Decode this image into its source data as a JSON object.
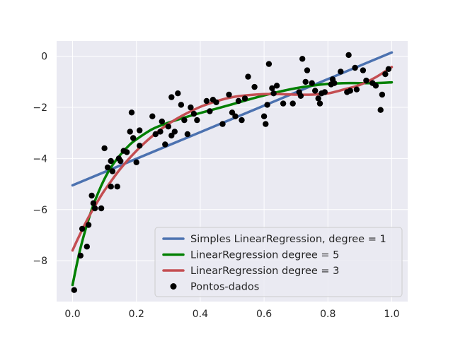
{
  "chart_data": {
    "type": "scatter",
    "title": "",
    "xlabel": "",
    "ylabel": "",
    "xlim": [
      -0.05,
      1.05
    ],
    "ylim": [
      -9.6,
      0.6
    ],
    "grid": true,
    "legend_position": "lower-right",
    "x_ticks": [
      0.0,
      0.2,
      0.4,
      0.6,
      0.8,
      1.0
    ],
    "x_tick_labels": [
      "0.0",
      "0.2",
      "0.4",
      "0.6",
      "0.8",
      "1.0"
    ],
    "y_ticks": [
      -8,
      -6,
      -4,
      -2,
      0
    ],
    "y_tick_labels": [
      "−8",
      "−6",
      "−4",
      "−2",
      "0"
    ],
    "colors": {
      "background": "#eaeaf2",
      "grid": "#ffffff",
      "degree1": "#4c72b0",
      "degree5": "#008000",
      "degree3": "#c44e52",
      "points": "#000000"
    },
    "series": [
      {
        "name": "Simples LinearRegression, degree = 1",
        "kind": "line",
        "color": "#4c72b0",
        "x": [
          0.0,
          1.0
        ],
        "y": [
          -5.05,
          0.15
        ]
      },
      {
        "name": "LinearRegression degree = 5",
        "kind": "line",
        "color": "#008000",
        "x": [
          0.0,
          0.02,
          0.04,
          0.06,
          0.08,
          0.1,
          0.12,
          0.15,
          0.18,
          0.2,
          0.25,
          0.3,
          0.35,
          0.4,
          0.45,
          0.5,
          0.55,
          0.6,
          0.65,
          0.7,
          0.75,
          0.8,
          0.85,
          0.9,
          0.95,
          1.0
        ],
        "y": [
          -8.95,
          -7.75,
          -6.8,
          -6.0,
          -5.35,
          -4.8,
          -4.35,
          -3.85,
          -3.45,
          -3.25,
          -2.85,
          -2.6,
          -2.4,
          -2.22,
          -2.05,
          -1.88,
          -1.7,
          -1.53,
          -1.38,
          -1.25,
          -1.15,
          -1.08,
          -1.05,
          -1.05,
          -1.05,
          -1.02
        ]
      },
      {
        "name": "LinearRegression degree = 3",
        "kind": "line",
        "color": "#c44e52",
        "x": [
          0.0,
          0.02,
          0.05,
          0.08,
          0.1,
          0.15,
          0.2,
          0.25,
          0.3,
          0.35,
          0.4,
          0.45,
          0.5,
          0.55,
          0.6,
          0.65,
          0.7,
          0.75,
          0.8,
          0.85,
          0.9,
          0.95,
          1.0
        ],
        "y": [
          -7.6,
          -7.05,
          -6.3,
          -5.65,
          -5.25,
          -4.4,
          -3.7,
          -3.12,
          -2.65,
          -2.28,
          -1.98,
          -1.76,
          -1.6,
          -1.52,
          -1.48,
          -1.48,
          -1.5,
          -1.5,
          -1.45,
          -1.3,
          -1.12,
          -0.82,
          -0.42
        ]
      },
      {
        "name": "Pontos-dados",
        "kind": "scatter",
        "color": "#000000",
        "x": [
          0.005,
          0.025,
          0.03,
          0.045,
          0.05,
          0.06,
          0.065,
          0.07,
          0.09,
          0.1,
          0.11,
          0.12,
          0.12,
          0.125,
          0.14,
          0.145,
          0.15,
          0.16,
          0.17,
          0.18,
          0.185,
          0.19,
          0.2,
          0.21,
          0.21,
          0.25,
          0.26,
          0.275,
          0.28,
          0.29,
          0.3,
          0.31,
          0.31,
          0.32,
          0.33,
          0.34,
          0.35,
          0.36,
          0.37,
          0.38,
          0.39,
          0.42,
          0.43,
          0.44,
          0.45,
          0.47,
          0.49,
          0.5,
          0.51,
          0.52,
          0.53,
          0.54,
          0.55,
          0.57,
          0.6,
          0.605,
          0.61,
          0.615,
          0.625,
          0.63,
          0.64,
          0.66,
          0.69,
          0.71,
          0.715,
          0.72,
          0.73,
          0.735,
          0.75,
          0.76,
          0.77,
          0.775,
          0.78,
          0.79,
          0.81,
          0.815,
          0.82,
          0.84,
          0.86,
          0.865,
          0.87,
          0.885,
          0.89,
          0.91,
          0.92,
          0.94,
          0.95,
          0.965,
          0.97,
          0.98,
          0.99
        ],
        "y": [
          -9.15,
          -7.8,
          -6.75,
          -7.45,
          -6.6,
          -5.45,
          -5.75,
          -5.95,
          -5.95,
          -3.6,
          -4.35,
          -4.1,
          -5.1,
          -4.5,
          -5.1,
          -4.0,
          -4.1,
          -3.7,
          -3.75,
          -2.95,
          -2.2,
          -3.2,
          -4.15,
          -2.9,
          -3.5,
          -2.35,
          -3.05,
          -2.95,
          -2.55,
          -3.45,
          -2.75,
          -1.6,
          -3.1,
          -2.95,
          -1.45,
          -1.9,
          -2.5,
          -3.05,
          -2.0,
          -2.25,
          -2.5,
          -1.75,
          -2.15,
          -1.7,
          -1.8,
          -2.65,
          -1.5,
          -2.2,
          -2.35,
          -1.75,
          -2.5,
          -1.65,
          -0.8,
          -1.2,
          -2.35,
          -2.65,
          -1.9,
          -0.3,
          -1.25,
          -1.45,
          -1.15,
          -1.85,
          -1.85,
          -1.4,
          -1.55,
          -0.1,
          -1.0,
          -0.55,
          -1.05,
          -1.35,
          -1.65,
          -1.85,
          -1.45,
          -1.4,
          -1.1,
          -0.9,
          -1.05,
          -0.6,
          -1.4,
          0.05,
          -1.35,
          -0.45,
          -1.3,
          -0.55,
          -0.95,
          -1.05,
          -1.15,
          -2.1,
          -1.5,
          -0.7,
          -0.5
        ]
      }
    ],
    "legend": [
      {
        "label": "Simples LinearRegression, degree = 1",
        "marker": "line",
        "color": "#4c72b0"
      },
      {
        "label": "LinearRegression degree = 5",
        "marker": "line",
        "color": "#008000"
      },
      {
        "label": "LinearRegression degree = 3",
        "marker": "line",
        "color": "#c44e52"
      },
      {
        "label": "Pontos-dados",
        "marker": "dot",
        "color": "#000000"
      }
    ]
  }
}
